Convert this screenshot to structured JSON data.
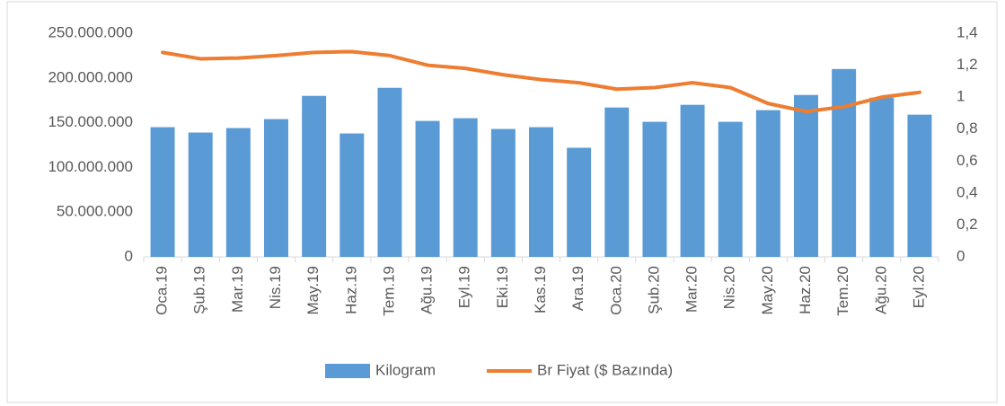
{
  "chart_data": {
    "type": "bar_line",
    "categories": [
      "Oca.19",
      "Şub.19",
      "Mar.19",
      "Nis.19",
      "May.19",
      "Haz.19",
      "Tem.19",
      "Ağu.19",
      "Eyl.19",
      "Eki.19",
      "Kas.19",
      "Ara.19",
      "Oca.20",
      "Şub.20",
      "Mar.20",
      "Nis.20",
      "May.20",
      "Haz.20",
      "Tem.20",
      "Ağu.20",
      "Eyl.20"
    ],
    "series": [
      {
        "name": "Kilogram",
        "type": "bar",
        "color": "#5b9bd5",
        "axis": "y",
        "values": [
          145000000,
          139000000,
          144000000,
          154000000,
          180000000,
          138000000,
          189000000,
          152000000,
          155000000,
          143000000,
          145000000,
          122000000,
          167000000,
          151000000,
          170000000,
          151000000,
          164000000,
          181000000,
          210000000,
          178000000,
          159000000
        ]
      },
      {
        "name": "Br Fiyat ($ Bazında)",
        "type": "line",
        "color": "#ed7d31",
        "axis": "y2",
        "values": [
          1.28,
          1.24,
          1.245,
          1.26,
          1.28,
          1.285,
          1.26,
          1.2,
          1.18,
          1.14,
          1.11,
          1.09,
          1.05,
          1.06,
          1.09,
          1.06,
          0.96,
          0.91,
          0.94,
          1.0,
          1.03
        ]
      }
    ],
    "ylim": [
      0,
      250000000
    ],
    "yticks": [
      0,
      {
        "value": 50000000,
        "label": "50.000.000"
      },
      {
        "value": 100000000,
        "label": "100.000.000"
      },
      {
        "value": 150000000,
        "label": "150.000.000"
      },
      {
        "value": 200000000,
        "label": "200.000.000"
      },
      {
        "value": 250000000,
        "label": "250.000.000"
      }
    ],
    "y2lim": [
      0,
      1.4
    ],
    "y2ticks": [
      0,
      {
        "value": 0.2,
        "label": "0,2"
      },
      {
        "value": 0.4,
        "label": "0,4"
      },
      {
        "value": 0.6,
        "label": "0,6"
      },
      {
        "value": 0.8,
        "label": "0,8"
      },
      1,
      {
        "value": 1.2,
        "label": "1,2"
      },
      {
        "value": 1.4,
        "label": "1,4"
      }
    ],
    "legend": "bottom"
  }
}
